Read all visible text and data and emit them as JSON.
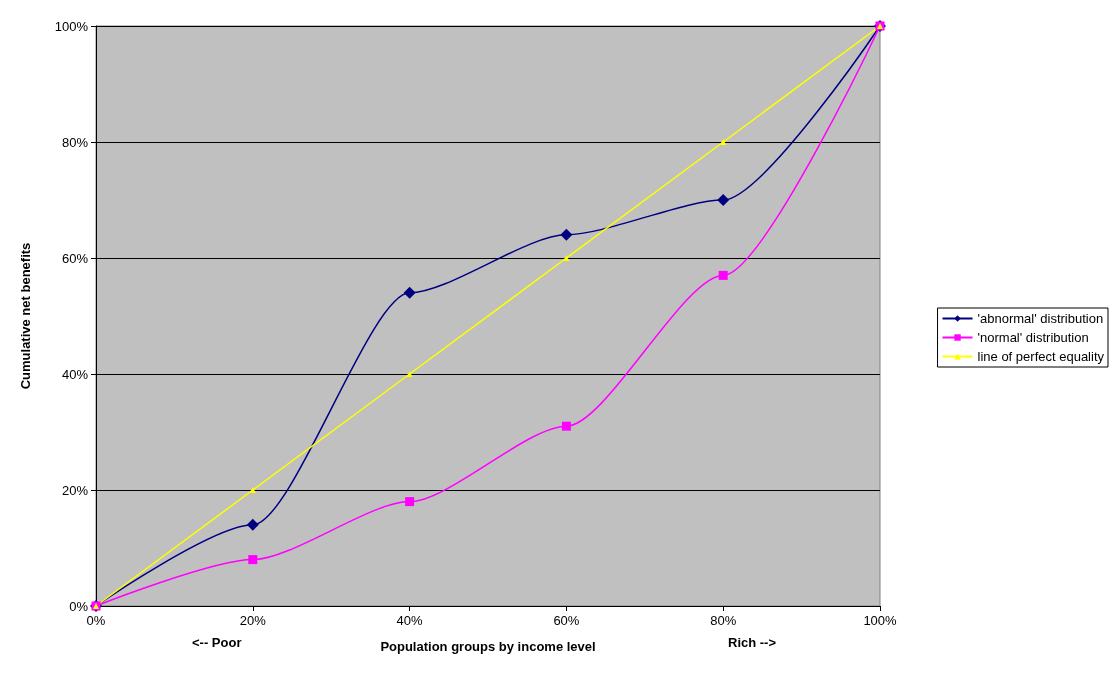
{
  "chart_data": {
    "type": "line",
    "xlabel": "Population groups by income level",
    "ylabel": "Cumulative net benefits",
    "x": [
      0,
      20,
      40,
      60,
      80,
      100
    ],
    "series": [
      {
        "name": "'abnormal' distribution",
        "color": "#000080",
        "marker": "diamond",
        "values": [
          0,
          14,
          54,
          64,
          70,
          100
        ]
      },
      {
        "name": "'normal' distribution",
        "color": "#ff00ff",
        "marker": "square",
        "values": [
          0,
          8,
          18,
          31,
          57,
          100
        ]
      },
      {
        "name": "line of perfect equality",
        "color": "#ffff00",
        "marker": "triangle",
        "values": [
          0,
          20,
          40,
          60,
          80,
          100
        ]
      }
    ],
    "xlim": [
      0,
      100
    ],
    "xticks": [
      {
        "value": 0,
        "label": "0%"
      },
      {
        "value": 20,
        "label": "20%"
      },
      {
        "value": 40,
        "label": "40%"
      },
      {
        "value": 60,
        "label": "60%"
      },
      {
        "value": 80,
        "label": "80%"
      },
      {
        "value": 100,
        "label": "100%"
      }
    ],
    "ylim": [
      0,
      100
    ],
    "yticks": [
      {
        "value": 0,
        "label": "0%"
      },
      {
        "value": 20,
        "label": "20%"
      },
      {
        "value": 40,
        "label": "40%"
      },
      {
        "value": 60,
        "label": "60%"
      },
      {
        "value": 80,
        "label": "80%"
      },
      {
        "value": 100,
        "label": "100%"
      }
    ],
    "grid": "y",
    "legend": "right",
    "line_style": "solid",
    "annotations": [
      "<-- Poor",
      "Rich -->"
    ]
  }
}
